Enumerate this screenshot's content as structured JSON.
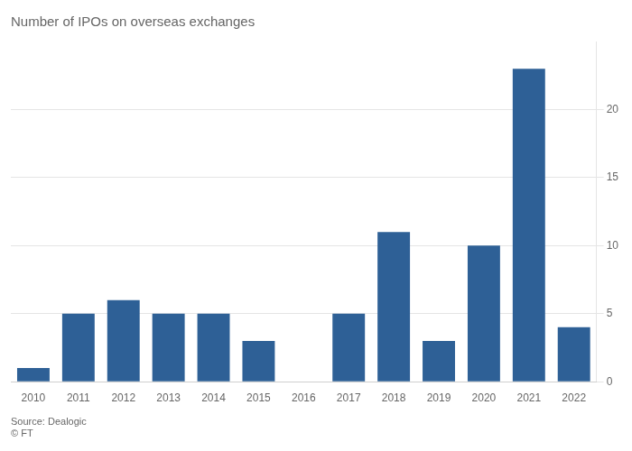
{
  "chart_data": {
    "type": "bar",
    "title": "Number of IPOs on overseas exchanges",
    "categories": [
      "2010",
      "2011",
      "2012",
      "2013",
      "2014",
      "2015",
      "2016",
      "2017",
      "2018",
      "2019",
      "2020",
      "2021",
      "2022"
    ],
    "values": [
      1,
      5,
      6,
      5,
      5,
      3,
      0,
      5,
      11,
      3,
      10,
      23,
      4
    ],
    "color": "#2e6096",
    "ylim": [
      0,
      25
    ],
    "yticks": [
      0,
      5,
      10,
      15,
      20
    ],
    "grid": true,
    "annotations": [
      "Source: Dealogic",
      "© FT"
    ]
  }
}
